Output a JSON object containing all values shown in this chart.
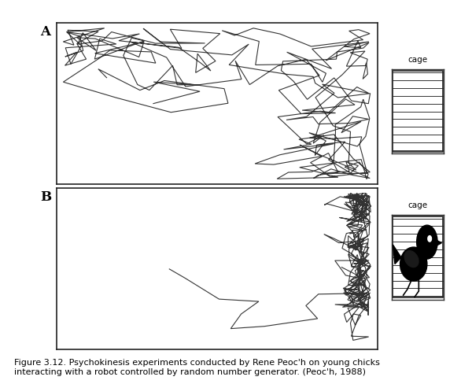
{
  "caption": "Figure 3.12. Psychokinesis experiments conducted by Rene Peoc'h on young chicks\ninteracting with a robot controlled by random number generator. (Peoc'h, 1988)",
  "label_A": "A",
  "label_B": "B",
  "cage_label": "cage",
  "background": "#ffffff",
  "line_color": "#333333",
  "line_width": 0.8,
  "seed_A": 7,
  "seed_B": 13,
  "n_steps_A": 220,
  "n_steps_B": 280,
  "fig_width": 6.0,
  "fig_height": 4.88,
  "caption_fontsize": 8.0,
  "label_fontsize": 12
}
